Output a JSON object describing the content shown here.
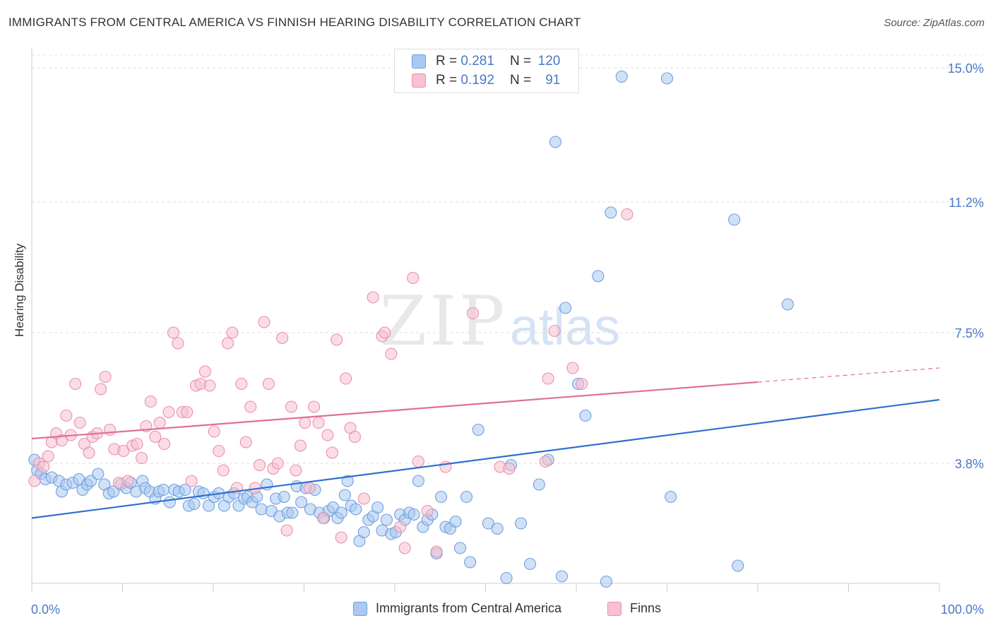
{
  "title": "IMMIGRANTS FROM CENTRAL AMERICA VS FINNISH HEARING DISABILITY CORRELATION CHART",
  "source": "Source: ZipAtlas.com",
  "watermark": {
    "zip": "ZIP",
    "atlas": "atlas"
  },
  "legend": {
    "r_label": "R =",
    "n_label": "N =",
    "rows": [
      {
        "r": "0.281",
        "n": "120"
      },
      {
        "r": "0.192",
        "n": "91"
      }
    ]
  },
  "chart_data": {
    "type": "scatter",
    "title": "IMMIGRANTS FROM CENTRAL AMERICA VS FINNISH HEARING DISABILITY CORRELATION CHART",
    "xlabel": "",
    "ylabel": "Hearing Disability",
    "x_tick_labels": [
      "0.0%",
      "100.0%"
    ],
    "y_tick_labels": [
      "3.8%",
      "7.5%",
      "11.2%",
      "15.0%"
    ],
    "y_ticks": [
      3.8,
      7.5,
      11.2,
      15.0
    ],
    "xlim": [
      0,
      100
    ],
    "ylim": [
      0,
      15.5
    ],
    "grid": "horizontal dashed",
    "legend_position": "top-center",
    "colors": {
      "blue_fill": "#aac8f0",
      "blue_stroke": "#6f9ee0",
      "blue_line": "#2f6fd0",
      "pink_fill": "#f8c0d0",
      "pink_stroke": "#e890aa",
      "pink_line": "#e06f99",
      "tick_label": "#4a78c8"
    },
    "series": [
      {
        "name": "Immigrants from Central America",
        "trend": {
          "x0": 0,
          "y0": 2.25,
          "x1": 100,
          "y1": 5.6
        },
        "points": [
          [
            0.3,
            3.9
          ],
          [
            0.6,
            3.6
          ],
          [
            1.0,
            3.5
          ],
          [
            1.5,
            3.35
          ],
          [
            2.2,
            3.4
          ],
          [
            3.0,
            3.3
          ],
          [
            3.3,
            3.0
          ],
          [
            3.8,
            3.2
          ],
          [
            4.5,
            3.25
          ],
          [
            5.2,
            3.35
          ],
          [
            5.6,
            3.05
          ],
          [
            6.1,
            3.2
          ],
          [
            6.5,
            3.3
          ],
          [
            7.3,
            3.5
          ],
          [
            8.0,
            3.2
          ],
          [
            8.5,
            2.95
          ],
          [
            9.0,
            3.0
          ],
          [
            9.8,
            3.2
          ],
          [
            10.4,
            3.1
          ],
          [
            10.9,
            3.25
          ],
          [
            11.5,
            3.0
          ],
          [
            12.2,
            3.3
          ],
          [
            12.5,
            3.1
          ],
          [
            13.0,
            3.0
          ],
          [
            13.6,
            2.8
          ],
          [
            14.0,
            3.0
          ],
          [
            14.5,
            3.05
          ],
          [
            15.2,
            2.7
          ],
          [
            15.7,
            3.05
          ],
          [
            16.2,
            3.0
          ],
          [
            16.9,
            3.05
          ],
          [
            17.3,
            2.6
          ],
          [
            17.9,
            2.65
          ],
          [
            18.4,
            3.0
          ],
          [
            18.9,
            2.95
          ],
          [
            19.5,
            2.6
          ],
          [
            20.1,
            2.85
          ],
          [
            20.6,
            2.95
          ],
          [
            21.2,
            2.6
          ],
          [
            21.7,
            2.85
          ],
          [
            22.3,
            2.95
          ],
          [
            22.8,
            2.6
          ],
          [
            23.4,
            2.8
          ],
          [
            23.8,
            2.85
          ],
          [
            24.3,
            2.7
          ],
          [
            24.8,
            2.85
          ],
          [
            25.3,
            2.5
          ],
          [
            25.9,
            3.2
          ],
          [
            26.4,
            2.45
          ],
          [
            26.9,
            2.8
          ],
          [
            27.3,
            2.3
          ],
          [
            27.8,
            2.85
          ],
          [
            28.2,
            2.4
          ],
          [
            28.7,
            2.4
          ],
          [
            29.2,
            3.15
          ],
          [
            29.7,
            2.7
          ],
          [
            30.2,
            3.1
          ],
          [
            30.7,
            2.5
          ],
          [
            31.2,
            3.05
          ],
          [
            31.7,
            2.4
          ],
          [
            32.2,
            2.25
          ],
          [
            32.7,
            2.45
          ],
          [
            33.2,
            2.55
          ],
          [
            33.7,
            2.25
          ],
          [
            34.1,
            2.4
          ],
          [
            34.5,
            2.9
          ],
          [
            34.8,
            3.3
          ],
          [
            35.2,
            2.6
          ],
          [
            35.7,
            2.5
          ],
          [
            36.1,
            1.6
          ],
          [
            36.6,
            1.85
          ],
          [
            37.1,
            2.2
          ],
          [
            37.6,
            2.3
          ],
          [
            38.1,
            2.55
          ],
          [
            38.6,
            1.9
          ],
          [
            39.1,
            2.2
          ],
          [
            39.6,
            1.8
          ],
          [
            40.1,
            1.85
          ],
          [
            40.6,
            2.35
          ],
          [
            41.1,
            2.2
          ],
          [
            41.6,
            2.4
          ],
          [
            42.1,
            2.35
          ],
          [
            42.6,
            3.3
          ],
          [
            43.1,
            2.0
          ],
          [
            43.6,
            2.2
          ],
          [
            44.1,
            2.35
          ],
          [
            44.6,
            1.25
          ],
          [
            45.1,
            2.85
          ],
          [
            45.6,
            2.0
          ],
          [
            46.1,
            1.95
          ],
          [
            46.7,
            2.15
          ],
          [
            47.2,
            1.4
          ],
          [
            47.9,
            2.85
          ],
          [
            48.3,
            1.0
          ],
          [
            49.2,
            4.75
          ],
          [
            50.3,
            2.1
          ],
          [
            51.3,
            1.95
          ],
          [
            52.3,
            0.55
          ],
          [
            52.8,
            3.75
          ],
          [
            53.9,
            2.1
          ],
          [
            54.9,
            0.95
          ],
          [
            55.9,
            3.2
          ],
          [
            56.9,
            3.9
          ],
          [
            57.7,
            12.9
          ],
          [
            58.4,
            0.6
          ],
          [
            58.8,
            8.2
          ],
          [
            60.2,
            6.05
          ],
          [
            61.0,
            5.15
          ],
          [
            62.4,
            9.1
          ],
          [
            63.3,
            0.45
          ],
          [
            63.8,
            10.9
          ],
          [
            65.0,
            14.75
          ],
          [
            70.0,
            14.7
          ],
          [
            70.4,
            2.85
          ],
          [
            77.4,
            10.7
          ],
          [
            77.8,
            0.9
          ],
          [
            83.3,
            8.3
          ]
        ]
      },
      {
        "name": "Finns",
        "trend": {
          "x0": 0,
          "y0": 4.5,
          "x1": 80,
          "y1": 6.1,
          "dashed_to_x": 100,
          "dashed_to_y": 6.5
        },
        "points": [
          [
            0.3,
            3.3
          ],
          [
            0.8,
            3.8
          ],
          [
            1.3,
            3.7
          ],
          [
            1.8,
            4.0
          ],
          [
            2.2,
            4.4
          ],
          [
            2.7,
            4.65
          ],
          [
            3.3,
            4.45
          ],
          [
            3.8,
            5.15
          ],
          [
            4.3,
            4.6
          ],
          [
            4.8,
            6.05
          ],
          [
            5.3,
            4.95
          ],
          [
            5.8,
            4.35
          ],
          [
            6.3,
            4.1
          ],
          [
            6.7,
            4.55
          ],
          [
            7.2,
            4.65
          ],
          [
            7.6,
            5.9
          ],
          [
            8.1,
            6.25
          ],
          [
            8.6,
            4.75
          ],
          [
            9.1,
            4.2
          ],
          [
            9.6,
            3.25
          ],
          [
            10.1,
            4.15
          ],
          [
            10.6,
            3.3
          ],
          [
            11.1,
            4.3
          ],
          [
            11.6,
            4.35
          ],
          [
            12.1,
            3.95
          ],
          [
            12.6,
            4.85
          ],
          [
            13.1,
            5.55
          ],
          [
            13.6,
            4.55
          ],
          [
            14.1,
            4.95
          ],
          [
            14.6,
            4.35
          ],
          [
            15.1,
            5.25
          ],
          [
            15.6,
            7.5
          ],
          [
            16.1,
            7.2
          ],
          [
            16.6,
            5.25
          ],
          [
            17.1,
            5.25
          ],
          [
            17.6,
            3.3
          ],
          [
            18.1,
            6.0
          ],
          [
            18.6,
            6.05
          ],
          [
            19.1,
            6.4
          ],
          [
            19.6,
            6.0
          ],
          [
            20.1,
            4.7
          ],
          [
            20.6,
            4.15
          ],
          [
            21.1,
            3.6
          ],
          [
            21.6,
            7.2
          ],
          [
            22.1,
            7.5
          ],
          [
            22.6,
            3.1
          ],
          [
            23.1,
            6.05
          ],
          [
            23.6,
            4.4
          ],
          [
            24.1,
            5.4
          ],
          [
            24.6,
            3.1
          ],
          [
            25.1,
            3.75
          ],
          [
            25.6,
            7.8
          ],
          [
            26.1,
            6.05
          ],
          [
            26.6,
            3.65
          ],
          [
            27.1,
            3.8
          ],
          [
            27.6,
            7.35
          ],
          [
            28.1,
            1.9
          ],
          [
            28.6,
            5.4
          ],
          [
            29.1,
            3.6
          ],
          [
            29.6,
            4.3
          ],
          [
            30.1,
            4.95
          ],
          [
            30.6,
            3.1
          ],
          [
            31.1,
            5.4
          ],
          [
            31.6,
            4.95
          ],
          [
            32.1,
            2.25
          ],
          [
            32.6,
            4.6
          ],
          [
            33.1,
            4.1
          ],
          [
            33.6,
            7.3
          ],
          [
            34.1,
            1.7
          ],
          [
            34.6,
            6.2
          ],
          [
            35.1,
            4.8
          ],
          [
            35.6,
            4.55
          ],
          [
            36.6,
            2.8
          ],
          [
            37.6,
            8.5
          ],
          [
            38.6,
            7.4
          ],
          [
            38.9,
            7.5
          ],
          [
            39.6,
            6.9
          ],
          [
            40.6,
            2.0
          ],
          [
            41.1,
            1.4
          ],
          [
            42.0,
            9.05
          ],
          [
            42.6,
            3.85
          ],
          [
            43.6,
            2.45
          ],
          [
            44.6,
            1.3
          ],
          [
            45.6,
            3.7
          ],
          [
            48.6,
            8.05
          ],
          [
            51.6,
            3.7
          ],
          [
            52.6,
            3.65
          ],
          [
            56.6,
            3.85
          ],
          [
            56.9,
            6.2
          ],
          [
            57.6,
            7.55
          ],
          [
            59.6,
            6.5
          ],
          [
            60.6,
            6.05
          ],
          [
            65.6,
            10.85
          ]
        ]
      }
    ]
  }
}
